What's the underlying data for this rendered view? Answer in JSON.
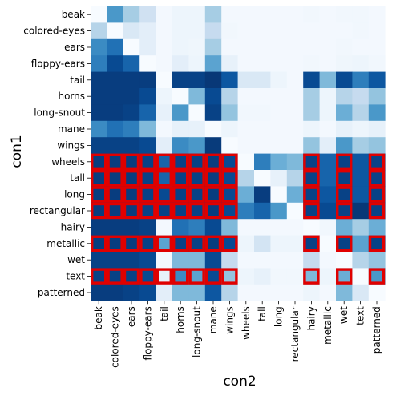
{
  "chart_data": {
    "type": "heatmap",
    "title": "",
    "xlabel": "con2",
    "ylabel": "con1",
    "colormap": "Blues",
    "color_range": [
      0,
      1
    ],
    "highlight_color": "#e00000",
    "rows": [
      "beak",
      "colored-eyes",
      "ears",
      "floppy-ears",
      "tail",
      "horns",
      "long-snout",
      "mane",
      "wings",
      "wheels",
      "tall",
      "long",
      "rectangular",
      "hairy",
      "metallic",
      "wet",
      "text",
      "patterned"
    ],
    "cols": [
      "beak",
      "colored-eyes",
      "ears",
      "floppy-ears",
      "tail",
      "horns",
      "long-snout",
      "mane",
      "wings",
      "wheels",
      "tall",
      "long",
      "rectangular",
      "hairy",
      "metallic",
      "wet",
      "text",
      "patterned"
    ],
    "values": [
      [
        0.0,
        0.6,
        0.35,
        0.2,
        0.02,
        0.05,
        0.05,
        0.35,
        0.02,
        0.02,
        0.02,
        0.02,
        0.02,
        0.03,
        0.02,
        0.03,
        0.03,
        0.02
      ],
      [
        0.3,
        0.0,
        0.15,
        0.1,
        0.02,
        0.05,
        0.05,
        0.25,
        0.03,
        0.02,
        0.02,
        0.02,
        0.02,
        0.02,
        0.02,
        0.02,
        0.03,
        0.02
      ],
      [
        0.65,
        0.75,
        0.0,
        0.1,
        0.02,
        0.05,
        0.04,
        0.35,
        0.02,
        0.02,
        0.02,
        0.02,
        0.02,
        0.02,
        0.02,
        0.03,
        0.02,
        0.02
      ],
      [
        0.7,
        0.9,
        0.8,
        0.0,
        0.02,
        0.1,
        0.05,
        0.55,
        0.08,
        0.02,
        0.02,
        0.02,
        0.02,
        0.03,
        0.02,
        0.04,
        0.05,
        0.03
      ],
      [
        0.95,
        0.95,
        0.95,
        0.95,
        0.0,
        0.93,
        0.93,
        0.97,
        0.85,
        0.15,
        0.15,
        0.05,
        0.02,
        0.9,
        0.45,
        0.9,
        0.7,
        0.85
      ],
      [
        0.95,
        0.95,
        0.95,
        0.9,
        0.05,
        0.0,
        0.45,
        0.9,
        0.3,
        0.02,
        0.02,
        0.02,
        0.02,
        0.35,
        0.05,
        0.3,
        0.25,
        0.4
      ],
      [
        0.95,
        0.95,
        0.93,
        0.8,
        0.08,
        0.6,
        0.0,
        0.93,
        0.4,
        0.03,
        0.03,
        0.02,
        0.02,
        0.35,
        0.05,
        0.5,
        0.3,
        0.6
      ],
      [
        0.65,
        0.75,
        0.7,
        0.45,
        0.02,
        0.08,
        0.08,
        0.0,
        0.05,
        0.02,
        0.02,
        0.02,
        0.02,
        0.05,
        0.02,
        0.08,
        0.05,
        0.08
      ],
      [
        0.93,
        0.93,
        0.93,
        0.9,
        0.1,
        0.65,
        0.6,
        0.96,
        0.0,
        0.02,
        0.02,
        0.02,
        0.02,
        0.4,
        0.1,
        0.6,
        0.35,
        0.4
      ],
      [
        0.95,
        0.95,
        0.95,
        0.93,
        0.8,
        0.93,
        0.93,
        0.95,
        0.9,
        0.0,
        0.7,
        0.5,
        0.45,
        0.93,
        0.8,
        0.93,
        0.85,
        0.93
      ],
      [
        0.95,
        0.95,
        0.95,
        0.93,
        0.8,
        0.93,
        0.93,
        0.95,
        0.9,
        0.3,
        0.0,
        0.08,
        0.3,
        0.93,
        0.8,
        0.93,
        0.85,
        0.93
      ],
      [
        0.95,
        0.95,
        0.95,
        0.93,
        0.9,
        0.93,
        0.93,
        0.95,
        0.9,
        0.5,
        0.95,
        0.0,
        0.5,
        0.93,
        0.85,
        0.93,
        0.85,
        0.93
      ],
      [
        0.95,
        0.95,
        0.95,
        0.93,
        0.93,
        0.93,
        0.93,
        0.95,
        0.9,
        0.7,
        0.8,
        0.6,
        0.0,
        0.93,
        0.9,
        0.93,
        0.97,
        0.93
      ],
      [
        0.95,
        0.95,
        0.95,
        0.93,
        0.02,
        0.75,
        0.7,
        0.9,
        0.45,
        0.02,
        0.02,
        0.02,
        0.02,
        0.0,
        0.03,
        0.5,
        0.35,
        0.5
      ],
      [
        0.95,
        0.95,
        0.95,
        0.93,
        0.55,
        0.93,
        0.93,
        0.95,
        0.9,
        0.05,
        0.18,
        0.05,
        0.05,
        0.93,
        0.0,
        0.93,
        0.55,
        0.93
      ],
      [
        0.93,
        0.93,
        0.93,
        0.9,
        0.02,
        0.45,
        0.45,
        0.9,
        0.25,
        0.02,
        0.02,
        0.02,
        0.02,
        0.25,
        0.02,
        0.0,
        0.3,
        0.4
      ],
      [
        0.93,
        0.93,
        0.93,
        0.9,
        0.08,
        0.65,
        0.55,
        0.9,
        0.4,
        0.05,
        0.08,
        0.03,
        0.03,
        0.45,
        0.05,
        0.5,
        0.0,
        0.6
      ],
      [
        0.95,
        0.95,
        0.93,
        0.9,
        0.1,
        0.45,
        0.45,
        0.85,
        0.3,
        0.02,
        0.02,
        0.02,
        0.02,
        0.05,
        0.02,
        0.45,
        0.15,
        0.0
      ]
    ],
    "highlighted_cells": [
      [
        9,
        0
      ],
      [
        9,
        1
      ],
      [
        9,
        2
      ],
      [
        9,
        3
      ],
      [
        9,
        4
      ],
      [
        9,
        5
      ],
      [
        9,
        6
      ],
      [
        9,
        7
      ],
      [
        9,
        8
      ],
      [
        9,
        13
      ],
      [
        9,
        15
      ],
      [
        9,
        17
      ],
      [
        10,
        0
      ],
      [
        10,
        1
      ],
      [
        10,
        2
      ],
      [
        10,
        3
      ],
      [
        10,
        4
      ],
      [
        10,
        5
      ],
      [
        10,
        6
      ],
      [
        10,
        7
      ],
      [
        10,
        8
      ],
      [
        10,
        13
      ],
      [
        10,
        15
      ],
      [
        10,
        17
      ],
      [
        11,
        0
      ],
      [
        11,
        1
      ],
      [
        11,
        2
      ],
      [
        11,
        3
      ],
      [
        11,
        4
      ],
      [
        11,
        5
      ],
      [
        11,
        6
      ],
      [
        11,
        7
      ],
      [
        11,
        8
      ],
      [
        11,
        13
      ],
      [
        11,
        15
      ],
      [
        11,
        17
      ],
      [
        12,
        0
      ],
      [
        12,
        1
      ],
      [
        12,
        2
      ],
      [
        12,
        3
      ],
      [
        12,
        4
      ],
      [
        12,
        5
      ],
      [
        12,
        6
      ],
      [
        12,
        7
      ],
      [
        12,
        8
      ],
      [
        12,
        13
      ],
      [
        12,
        15
      ],
      [
        12,
        17
      ],
      [
        14,
        0
      ],
      [
        14,
        1
      ],
      [
        14,
        2
      ],
      [
        14,
        3
      ],
      [
        14,
        4
      ],
      [
        14,
        5
      ],
      [
        14,
        6
      ],
      [
        14,
        7
      ],
      [
        14,
        8
      ],
      [
        14,
        13
      ],
      [
        14,
        15
      ],
      [
        14,
        17
      ],
      [
        16,
        0
      ],
      [
        16,
        1
      ],
      [
        16,
        2
      ],
      [
        16,
        3
      ],
      [
        16,
        4
      ],
      [
        16,
        5
      ],
      [
        16,
        6
      ],
      [
        16,
        7
      ],
      [
        16,
        8
      ],
      [
        16,
        13
      ],
      [
        16,
        15
      ],
      [
        16,
        17
      ]
    ],
    "grid": false,
    "legend": "none"
  }
}
